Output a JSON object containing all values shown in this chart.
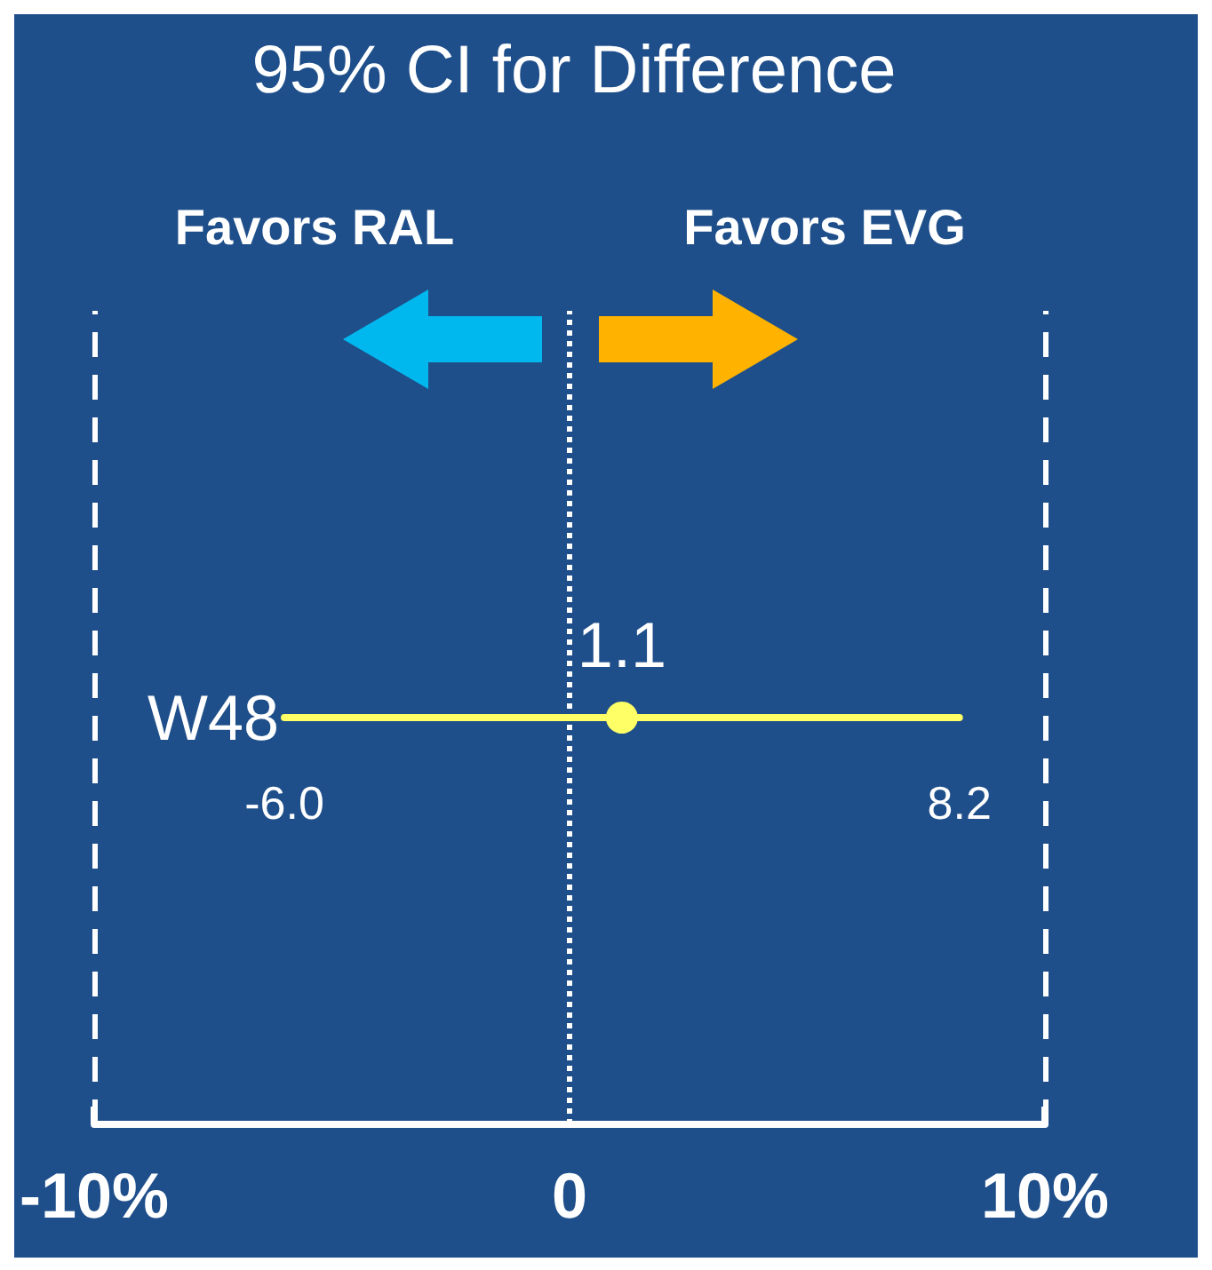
{
  "chart_data": {
    "type": "scatter",
    "orientation": "horizontal",
    "title": "95% CI for Difference",
    "categories": [
      "W48"
    ],
    "values": [
      1.1
    ],
    "errors": [
      [
        -6.0,
        8.2
      ]
    ],
    "color": "#ffff66",
    "marker": "circle",
    "data_labels": true,
    "annotations": [
      "Favors RAL",
      "Favors EVG",
      {
        "text": "-6.0",
        "x": -6.0,
        "y": "W48"
      },
      {
        "text": "8.2",
        "x": 8.2,
        "y": "W48"
      }
    ],
    "xlim": [
      -10,
      10
    ],
    "xticks": [
      {
        "value": -10,
        "label": "-10%"
      },
      0,
      {
        "value": 10,
        "label": "10%"
      }
    ],
    "ref_lines": [
      {
        "axis": "x",
        "value": -10,
        "color": "#ffffff",
        "line_style": "dashed"
      },
      {
        "axis": "x",
        "value": 0,
        "color": "#ffffff",
        "line_style": "dotted"
      },
      {
        "axis": "x",
        "value": 10,
        "color": "#ffffff",
        "line_style": "dashed"
      }
    ]
  }
}
